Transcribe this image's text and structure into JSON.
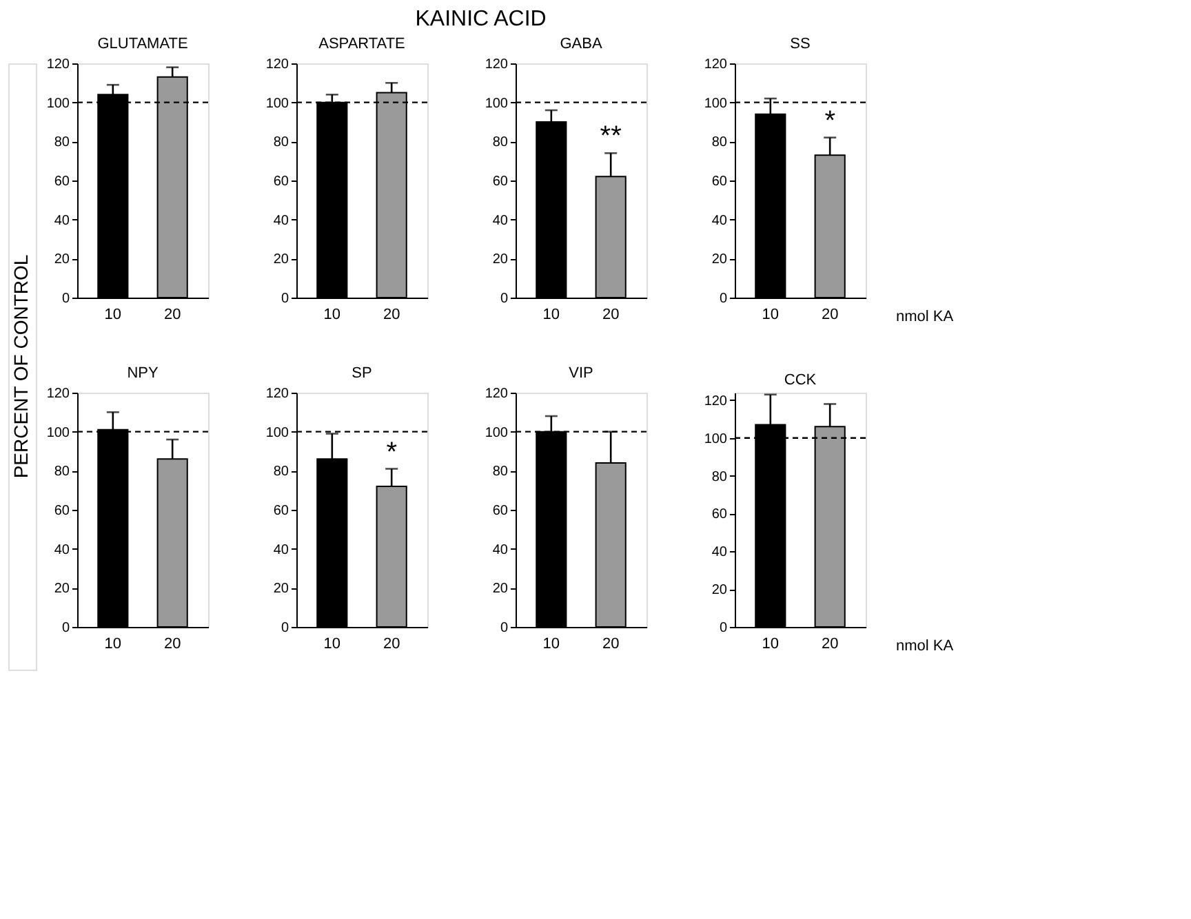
{
  "chart_data": [
    {
      "type": "other",
      "title": "KAINIC ACID",
      "ylabel": "PERCENT OF CONTROL"
    },
    {
      "type": "bar",
      "title": "GLUTAMATE",
      "categories": [
        "10",
        "20"
      ],
      "values": [
        104,
        113
      ],
      "errors": [
        5,
        5
      ],
      "colors": [
        "#000000",
        "#9a9a9a"
      ],
      "ylim": [
        0,
        120
      ],
      "yticks": [
        0,
        20,
        40,
        60,
        80,
        100,
        120
      ],
      "ref_lines": [
        {
          "axis": "y",
          "value": 100,
          "line_style": "dashed"
        }
      ]
    },
    {
      "type": "bar",
      "title": "ASPARTATE",
      "categories": [
        "10",
        "20"
      ],
      "values": [
        100,
        105
      ],
      "errors": [
        4,
        5
      ],
      "colors": [
        "#000000",
        "#9a9a9a"
      ],
      "ylim": [
        0,
        120
      ],
      "yticks": [
        0,
        20,
        40,
        60,
        80,
        100,
        120
      ],
      "ref_lines": [
        {
          "axis": "y",
          "value": 100,
          "line_style": "dashed"
        }
      ]
    },
    {
      "type": "bar",
      "title": "GABA",
      "categories": [
        "10",
        "20"
      ],
      "values": [
        90,
        62
      ],
      "errors": [
        6,
        12
      ],
      "colors": [
        "#000000",
        "#9a9a9a"
      ],
      "ylim": [
        0,
        120
      ],
      "yticks": [
        0,
        20,
        40,
        60,
        80,
        100,
        120
      ],
      "ref_lines": [
        {
          "axis": "y",
          "value": 100,
          "line_style": "dashed"
        }
      ],
      "annotations": [
        {
          "text": "**",
          "x": "20",
          "y": 74
        }
      ]
    },
    {
      "type": "bar",
      "title": "SS",
      "categories": [
        "10",
        "20"
      ],
      "values": [
        94,
        73
      ],
      "errors": [
        8,
        9
      ],
      "colors": [
        "#000000",
        "#9a9a9a"
      ],
      "ylim": [
        0,
        120
      ],
      "yticks": [
        0,
        20,
        40,
        60,
        80,
        100,
        120
      ],
      "ref_lines": [
        {
          "axis": "y",
          "value": 100,
          "line_style": "dashed"
        }
      ],
      "annotations": [
        {
          "text": "*",
          "x": "20",
          "y": 82
        }
      ],
      "xlabel": "nmol KA"
    },
    {
      "type": "bar",
      "title": "NPY",
      "categories": [
        "10",
        "20"
      ],
      "values": [
        101,
        86
      ],
      "errors": [
        9,
        10
      ],
      "colors": [
        "#000000",
        "#9a9a9a"
      ],
      "ylim": [
        0,
        120
      ],
      "yticks": [
        0,
        20,
        40,
        60,
        80,
        100,
        120
      ],
      "ref_lines": [
        {
          "axis": "y",
          "value": 100,
          "line_style": "dashed"
        }
      ]
    },
    {
      "type": "bar",
      "title": "SP",
      "categories": [
        "10",
        "20"
      ],
      "values": [
        86,
        72
      ],
      "errors": [
        13,
        9
      ],
      "colors": [
        "#000000",
        "#9a9a9a"
      ],
      "ylim": [
        0,
        120
      ],
      "yticks": [
        0,
        20,
        40,
        60,
        80,
        100,
        120
      ],
      "ref_lines": [
        {
          "axis": "y",
          "value": 100,
          "line_style": "dashed"
        }
      ],
      "annotations": [
        {
          "text": "*",
          "x": "20",
          "y": 81
        }
      ]
    },
    {
      "type": "bar",
      "title": "VIP",
      "categories": [
        "10",
        "20"
      ],
      "values": [
        100,
        84
      ],
      "errors": [
        8,
        16
      ],
      "colors": [
        "#000000",
        "#9a9a9a"
      ],
      "ylim": [
        0,
        120
      ],
      "yticks": [
        0,
        20,
        40,
        60,
        80,
        100,
        120
      ],
      "ref_lines": [
        {
          "axis": "y",
          "value": 100,
          "line_style": "dashed"
        }
      ]
    },
    {
      "type": "bar",
      "title": "CCK",
      "categories": [
        "10",
        "20"
      ],
      "values": [
        107,
        106
      ],
      "errors": [
        16,
        12
      ],
      "colors": [
        "#000000",
        "#9a9a9a"
      ],
      "ylim": [
        0,
        124
      ],
      "yticks": [
        0,
        20,
        40,
        60,
        80,
        100,
        120
      ],
      "ref_lines": [
        {
          "axis": "y",
          "value": 100,
          "line_style": "dashed"
        }
      ],
      "xlabel": "nmol KA"
    }
  ]
}
